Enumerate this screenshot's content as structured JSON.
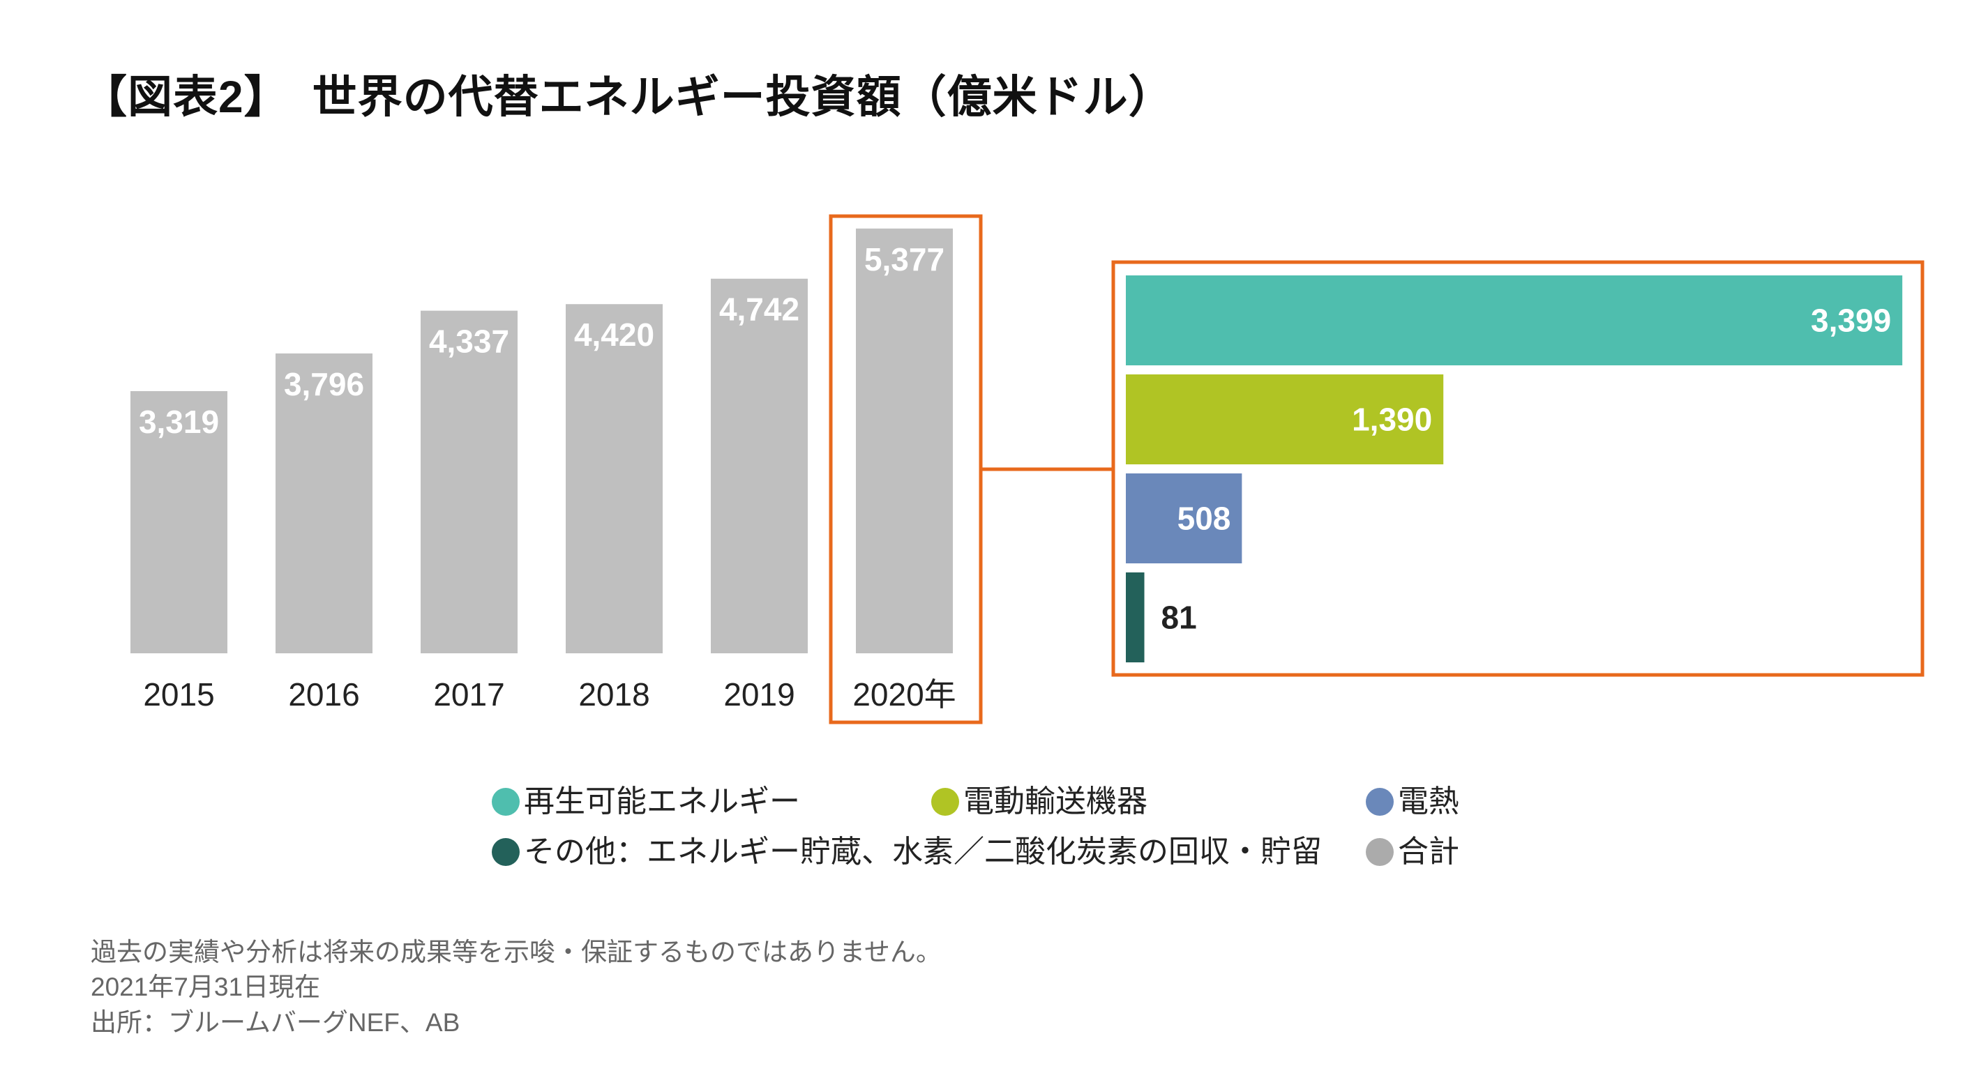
{
  "title": "【図表2】　世界の代替エネルギー投資額（億米ドル）",
  "chart_data": [
    {
      "type": "bar",
      "categories": [
        "2015",
        "2016",
        "2017",
        "2018",
        "2019",
        "2020年"
      ],
      "values": [
        3319,
        3796,
        4337,
        4420,
        4742,
        5377
      ],
      "value_labels": [
        "3,319",
        "3,796",
        "4,337",
        "4,420",
        "4,742",
        "5,377"
      ],
      "series_name": "合計",
      "color": "#BFBFBF",
      "highlight_category": "2020年",
      "highlight_color": "#E8691C",
      "grid": false
    },
    {
      "type": "bar",
      "orientation": "horizontal",
      "categories": [
        "再生可能エネルギー",
        "電動輸送機器",
        "電熱",
        "その他：エネルギー貯蔵、水素／二酸化炭素の回収・貯留"
      ],
      "values": [
        3399,
        1390,
        508,
        81
      ],
      "value_labels": [
        "3,399",
        "1,390",
        "508",
        "81"
      ],
      "colors": [
        "#4FBEAE",
        "#B0C424",
        "#6A88BA",
        "#23615A"
      ],
      "grid": false
    }
  ],
  "legend": [
    {
      "label": "再生可能エネルギー",
      "color": "#4FBEAE"
    },
    {
      "label": "電動輸送機器",
      "color": "#B0C424"
    },
    {
      "label": "電熱",
      "color": "#6A88BA"
    },
    {
      "label": "その他：エネルギー貯蔵、水素／二酸化炭素の回収・貯留",
      "color": "#23615A"
    },
    {
      "label": "合計",
      "color": "#ABABAB"
    }
  ],
  "footnotes": [
    "過去の実績や分析は将来の成果等を示唆・保証するものではありません。",
    "2021年7月31日現在",
    "出所：ブルームバーグNEF、AB"
  ]
}
